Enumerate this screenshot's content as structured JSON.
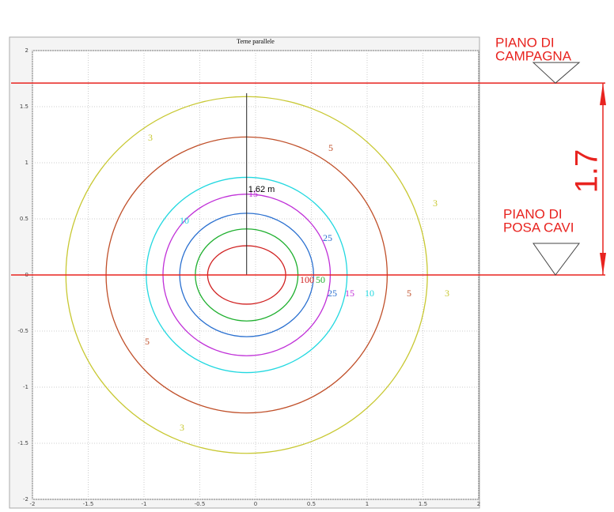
{
  "chart_data": {
    "type": "contour",
    "title": "Terne parallele",
    "xlim": [
      -2,
      2
    ],
    "ylim": [
      -2,
      2
    ],
    "xticks": [
      -2,
      -1.5,
      -1,
      -0.5,
      0,
      0.5,
      1,
      1.5,
      2
    ],
    "yticks": [
      -2,
      -1.5,
      -1,
      -0.5,
      0,
      0.5,
      1,
      1.5,
      2
    ],
    "grid": true,
    "contours": [
      {
        "level": 3,
        "color": "#c8c832",
        "cx": -0.08,
        "cy": 0,
        "rx": 1.62,
        "ry": 1.59
      },
      {
        "level": 5,
        "color": "#c0502a",
        "cx": -0.08,
        "cy": 0,
        "rx": 1.26,
        "ry": 1.23
      },
      {
        "level": 10,
        "color": "#22d8e0",
        "cx": -0.08,
        "cy": 0,
        "rx": 0.9,
        "ry": 0.87
      },
      {
        "level": 15,
        "color": "#c030d8",
        "cx": -0.08,
        "cy": 0,
        "rx": 0.75,
        "ry": 0.72
      },
      {
        "level": 25,
        "color": "#2a70d0",
        "cx": -0.08,
        "cy": 0,
        "rx": 0.6,
        "ry": 0.55
      },
      {
        "level": 50,
        "color": "#20b030",
        "cx": -0.08,
        "cy": 0,
        "rx": 0.46,
        "ry": 0.41
      },
      {
        "level": 100,
        "color": "#d02020",
        "cx": -0.08,
        "cy": 0,
        "rx": 0.35,
        "ry": 0.26
      }
    ],
    "depth_line": {
      "x": -0.08,
      "y": 1.62,
      "label": "1.62 m"
    },
    "reference_lines": [
      {
        "y": 1.71,
        "label_lines": [
          "PIANO DI",
          "CAMPAGNA"
        ]
      },
      {
        "y": 0,
        "label_lines": [
          "PIANO DI",
          "POSA CAVI"
        ]
      }
    ],
    "reference_color": "#e8231f",
    "dimension_label": "1.7"
  }
}
